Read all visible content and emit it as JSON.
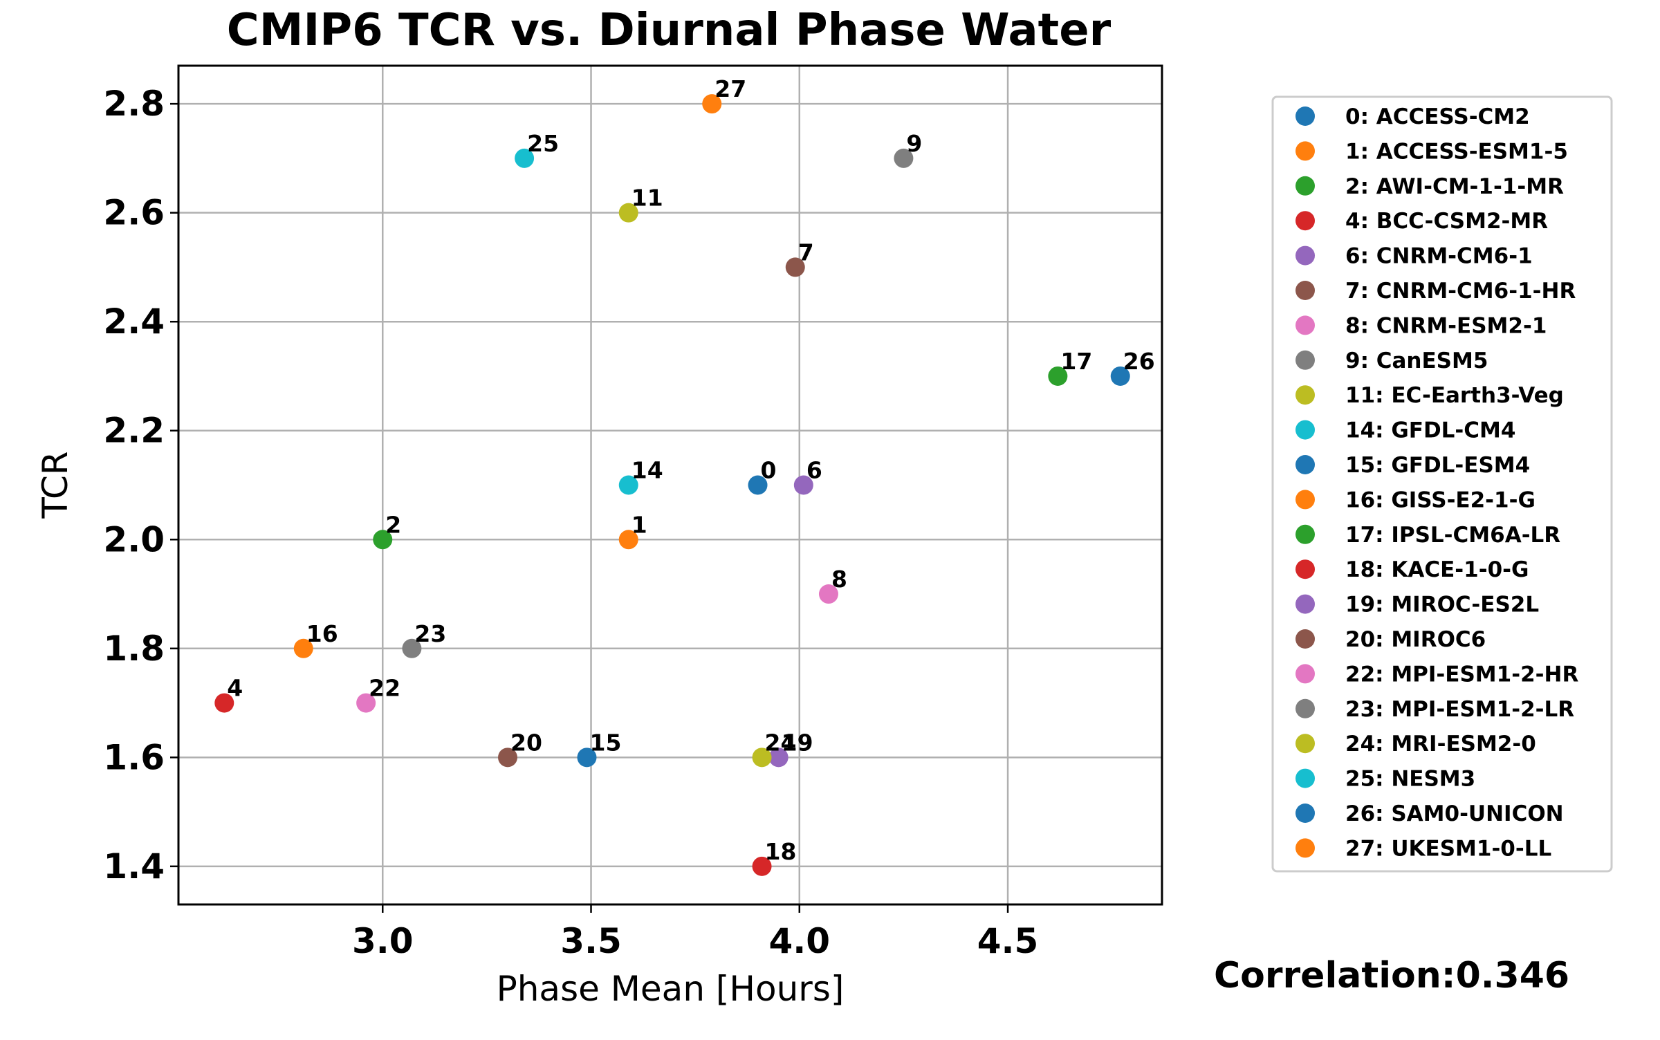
{
  "chart_data": {
    "type": "scatter",
    "title": "CMIP6 TCR vs. Diurnal Phase Water",
    "xlabel": "Phase Mean [Hours]",
    "ylabel": "TCR",
    "xlim": [
      2.51,
      4.87
    ],
    "ylim": [
      1.33,
      2.87
    ],
    "xticks": [
      "3.0",
      "3.5",
      "4.0",
      "4.5"
    ],
    "yticks": [
      "1.4",
      "1.6",
      "1.8",
      "2.0",
      "2.2",
      "2.4",
      "2.6",
      "2.8"
    ],
    "grid": true,
    "legend_position": "right",
    "annotation": "Correlation:0.346",
    "points": [
      {
        "id": "0",
        "legend": "0: ACCESS-CM2",
        "x": 3.9,
        "y": 2.1,
        "color": "#1f77b4"
      },
      {
        "id": "1",
        "legend": "1: ACCESS-ESM1-5",
        "x": 3.59,
        "y": 2.0,
        "color": "#ff7f0e"
      },
      {
        "id": "2",
        "legend": "2: AWI-CM-1-1-MR",
        "x": 3.0,
        "y": 2.0,
        "color": "#2ca02c"
      },
      {
        "id": "4",
        "legend": "4: BCC-CSM2-MR",
        "x": 2.62,
        "y": 1.7,
        "color": "#d62728"
      },
      {
        "id": "6",
        "legend": "6: CNRM-CM6-1",
        "x": 4.01,
        "y": 2.1,
        "color": "#9467bd"
      },
      {
        "id": "7",
        "legend": "7: CNRM-CM6-1-HR",
        "x": 3.99,
        "y": 2.5,
        "color": "#8c564b"
      },
      {
        "id": "8",
        "legend": "8: CNRM-ESM2-1",
        "x": 4.07,
        "y": 1.9,
        "color": "#e377c2"
      },
      {
        "id": "9",
        "legend": "9: CanESM5",
        "x": 4.25,
        "y": 2.7,
        "color": "#7f7f7f"
      },
      {
        "id": "11",
        "legend": "11: EC-Earth3-Veg",
        "x": 3.59,
        "y": 2.6,
        "color": "#bcbd22"
      },
      {
        "id": "14",
        "legend": "14: GFDL-CM4",
        "x": 3.59,
        "y": 2.1,
        "color": "#17becf"
      },
      {
        "id": "15",
        "legend": "15: GFDL-ESM4",
        "x": 3.49,
        "y": 1.6,
        "color": "#1f77b4"
      },
      {
        "id": "16",
        "legend": "16: GISS-E2-1-G",
        "x": 2.81,
        "y": 1.8,
        "color": "#ff7f0e"
      },
      {
        "id": "17",
        "legend": "17: IPSL-CM6A-LR",
        "x": 4.62,
        "y": 2.3,
        "color": "#2ca02c"
      },
      {
        "id": "18",
        "legend": "18: KACE-1-0-G",
        "x": 3.91,
        "y": 1.4,
        "color": "#d62728"
      },
      {
        "id": "19",
        "legend": "19: MIROC-ES2L",
        "x": 3.95,
        "y": 1.6,
        "color": "#9467bd"
      },
      {
        "id": "20",
        "legend": "20: MIROC6",
        "x": 3.3,
        "y": 1.6,
        "color": "#8c564b"
      },
      {
        "id": "22",
        "legend": "22: MPI-ESM1-2-HR",
        "x": 2.96,
        "y": 1.7,
        "color": "#e377c2"
      },
      {
        "id": "23",
        "legend": "23: MPI-ESM1-2-LR",
        "x": 3.07,
        "y": 1.8,
        "color": "#7f7f7f"
      },
      {
        "id": "24",
        "legend": "24: MRI-ESM2-0",
        "x": 3.91,
        "y": 1.6,
        "color": "#bcbd22"
      },
      {
        "id": "25",
        "legend": "25: NESM3",
        "x": 3.34,
        "y": 2.7,
        "color": "#17becf"
      },
      {
        "id": "26",
        "legend": "26: SAM0-UNICON",
        "x": 4.77,
        "y": 2.3,
        "color": "#1f77b4"
      },
      {
        "id": "27",
        "legend": "27: UKESM1-0-LL",
        "x": 3.79,
        "y": 2.8,
        "color": "#ff7f0e"
      }
    ]
  }
}
